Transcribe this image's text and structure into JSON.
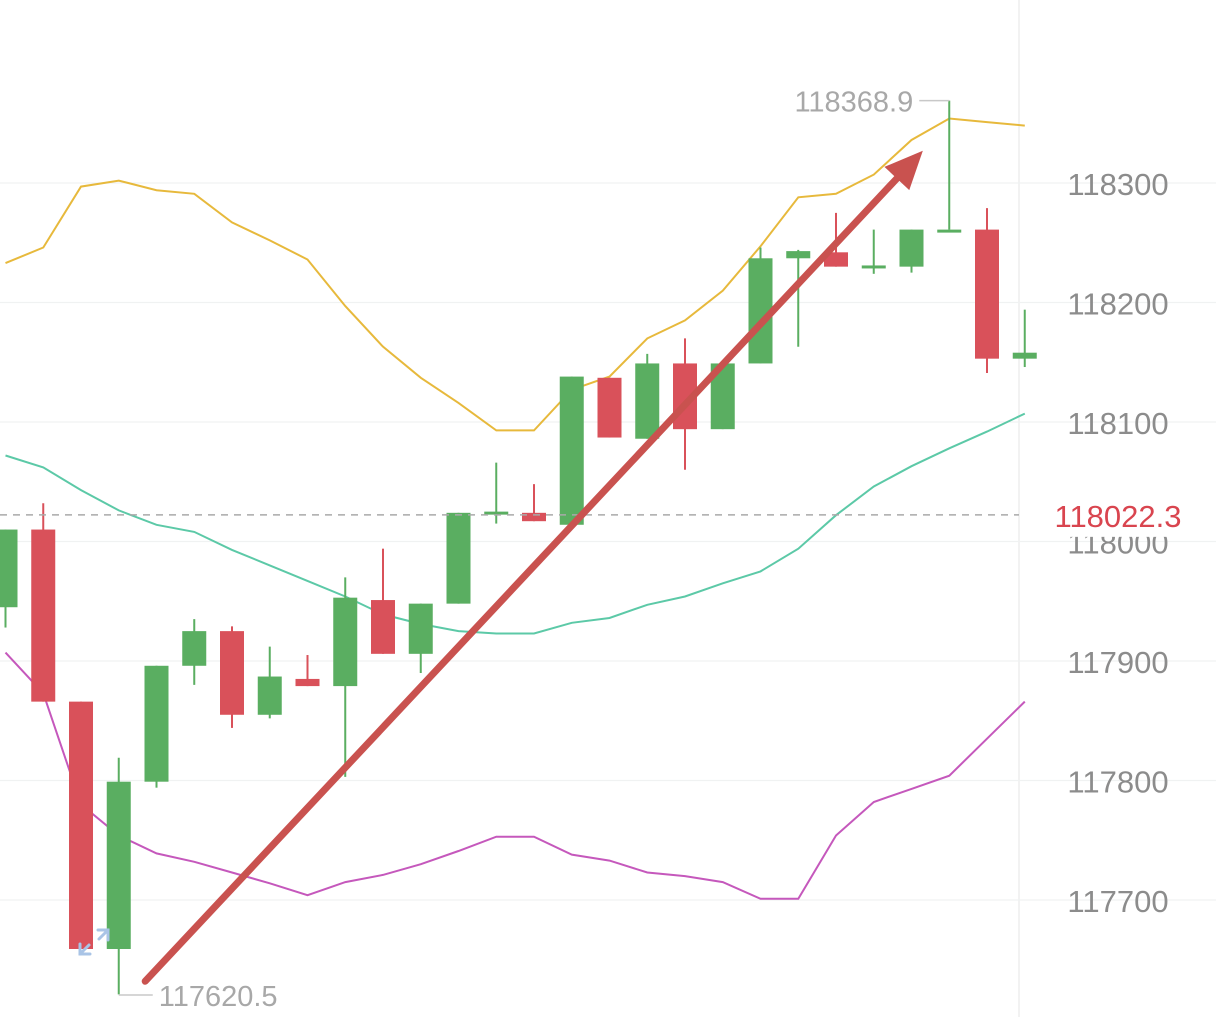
{
  "chart_data": {
    "type": "candlestick",
    "y_axis": {
      "side": "right",
      "ticks": [
        "118300",
        "118200",
        "118100",
        "118000",
        "117900",
        "117800",
        "117700"
      ],
      "ylim": [
        117605,
        118384
      ]
    },
    "current_price": {
      "label": "118022.3",
      "value": 118022.3,
      "color": "#d9454f"
    },
    "high_marker": {
      "label": "118368.9",
      "value": 118368.9,
      "candle": 25
    },
    "low_marker": {
      "label": "117620.5",
      "value": 117620.5,
      "candle": 3
    },
    "candles": [
      {
        "open": 117945,
        "close": 118010,
        "high": 118010,
        "low": 117928
      },
      {
        "open": 118010,
        "close": 117866,
        "high": 118032,
        "low": 117866
      },
      {
        "open": 117866,
        "close": 117659,
        "high": 117866,
        "low": 117659
      },
      {
        "open": 117659,
        "close": 117799,
        "high": 117819,
        "low": 117621
      },
      {
        "open": 117799,
        "close": 117896,
        "high": 117896,
        "low": 117794
      },
      {
        "open": 117896,
        "close": 117925,
        "high": 117935,
        "low": 117880
      },
      {
        "open": 117925,
        "close": 117855,
        "high": 117929,
        "low": 117844
      },
      {
        "open": 117855,
        "close": 117887,
        "high": 117912,
        "low": 117852
      },
      {
        "open": 117885,
        "close": 117879,
        "high": 117905,
        "low": 117879
      },
      {
        "open": 117879,
        "close": 117953,
        "high": 117970,
        "low": 117803
      },
      {
        "open": 117951,
        "close": 117906,
        "high": 117994,
        "low": 117906
      },
      {
        "open": 117906,
        "close": 117948,
        "high": 117948,
        "low": 117890
      },
      {
        "open": 117948,
        "close": 118024,
        "high": 118024,
        "low": 117948
      },
      {
        "open": 118024,
        "close": 118025,
        "high": 118066,
        "low": 118015
      },
      {
        "open": 118024,
        "close": 118017,
        "high": 118048,
        "low": 118017
      },
      {
        "open": 118014,
        "close": 118138,
        "high": 118138,
        "low": 118014
      },
      {
        "open": 118137,
        "close": 118087,
        "high": 118137,
        "low": 118087
      },
      {
        "open": 118086,
        "close": 118149,
        "high": 118157,
        "low": 118086
      },
      {
        "open": 118149,
        "close": 118094,
        "high": 118170,
        "low": 118060
      },
      {
        "open": 118094,
        "close": 118149,
        "high": 118149,
        "low": 118094
      },
      {
        "open": 118149,
        "close": 118237,
        "high": 118246,
        "low": 118149
      },
      {
        "open": 118237,
        "close": 118243,
        "high": 118244,
        "low": 118163
      },
      {
        "open": 118242,
        "close": 118230,
        "high": 118275,
        "low": 118230
      },
      {
        "open": 118231,
        "close": 118231,
        "high": 118261,
        "low": 118224
      },
      {
        "open": 118230,
        "close": 118261,
        "high": 118261,
        "low": 118225
      },
      {
        "open": 118261,
        "close": 118261,
        "high": 118368.9,
        "low": 118261
      },
      {
        "open": 118261,
        "close": 118153,
        "high": 118279,
        "low": 118141
      },
      {
        "open": 118153,
        "close": 118158,
        "high": 118194,
        "low": 118146
      }
    ],
    "overlays": [
      {
        "name": "",
        "color": "#e7b93c",
        "values": [
          118233,
          118246,
          118297,
          118302,
          118294,
          118291,
          118267,
          118252,
          118236,
          118197,
          118163,
          118137,
          118116,
          118093,
          118093,
          118127,
          118138,
          118170,
          118185,
          118210,
          118247,
          118288,
          118291,
          118307,
          118336,
          118354,
          118351,
          118348
        ]
      },
      {
        "name": "",
        "color": "#5cc9a7",
        "values": [
          118072,
          118062,
          118043,
          118026,
          118014,
          118008,
          117993,
          117980,
          117967,
          117954,
          117939,
          117931,
          117925,
          117923,
          117923,
          117932,
          117936,
          117947,
          117954,
          117965,
          117975,
          117994,
          118022,
          118046,
          118063,
          118078,
          118092,
          118107
        ]
      },
      {
        "name": "",
        "color": "#c558bc",
        "values": [
          117907,
          117873,
          117780,
          117754,
          117739,
          117732,
          117723,
          117714,
          117704,
          117715,
          117721,
          117730,
          117741,
          117753,
          117753,
          117738,
          117733,
          117723,
          117720,
          117715,
          117701,
          117701,
          117754,
          117782,
          117793,
          117804,
          117835,
          117866
        ]
      }
    ],
    "annotation_arrow": {
      "color": "#c9524f",
      "from_candle": 3.7,
      "from_value": 117632,
      "to_candle": 24.3,
      "to_value": 118327
    }
  }
}
